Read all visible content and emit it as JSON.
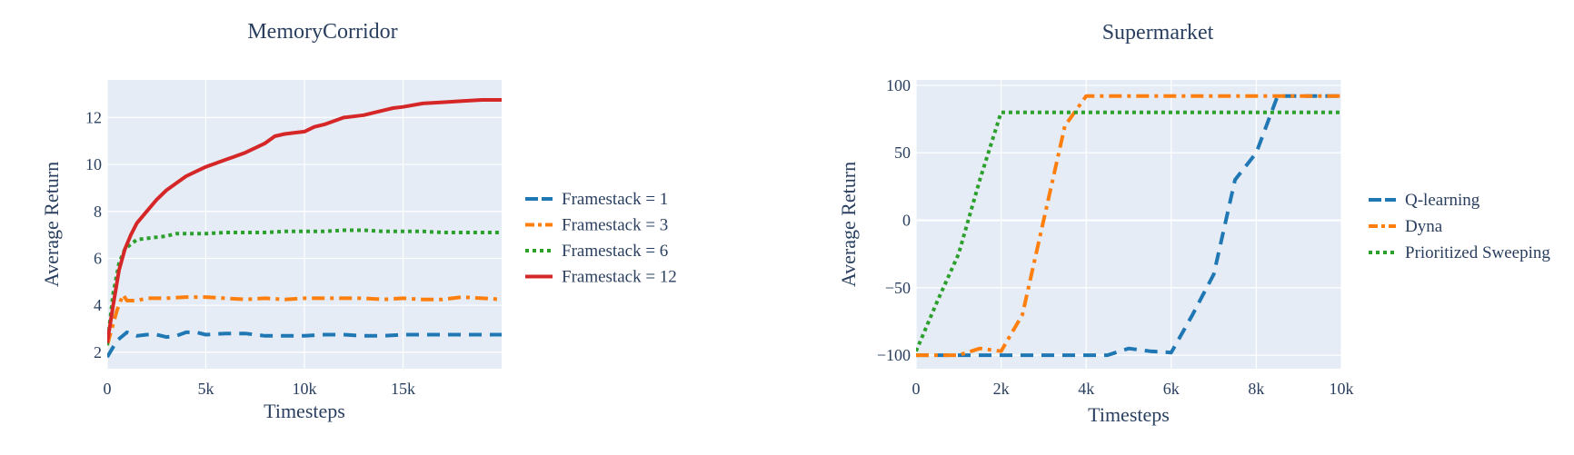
{
  "chart_data": [
    {
      "type": "line",
      "title": "MemoryCorridor",
      "xlabel": "Timesteps",
      "ylabel": "Average Return",
      "xlim": [
        0,
        20000
      ],
      "ylim": [
        1.3,
        13.6
      ],
      "xticks": [
        0,
        5000,
        10000,
        15000
      ],
      "xtick_labels": [
        "0",
        "5k",
        "10k",
        "15k"
      ],
      "yticks": [
        2,
        4,
        6,
        8,
        10,
        12
      ],
      "ytick_labels": [
        "2",
        "4",
        "6",
        "8",
        "10",
        "12"
      ],
      "grid": true,
      "legend_position": "right",
      "series": [
        {
          "name": "Framestack = 1",
          "color": "#1f77b4",
          "dash": "dash",
          "x": [
            0,
            500,
            1000,
            1500,
            2000,
            2500,
            3000,
            3500,
            4000,
            4500,
            5000,
            6000,
            7000,
            8000,
            9000,
            10000,
            11000,
            12000,
            13000,
            14000,
            15000,
            16000,
            17000,
            18000,
            19000,
            20000
          ],
          "y": [
            1.8,
            2.5,
            2.85,
            2.7,
            2.75,
            2.75,
            2.65,
            2.7,
            2.85,
            2.85,
            2.75,
            2.8,
            2.8,
            2.7,
            2.7,
            2.7,
            2.75,
            2.75,
            2.7,
            2.7,
            2.75,
            2.75,
            2.75,
            2.75,
            2.75,
            2.75
          ]
        },
        {
          "name": "Framestack = 3",
          "color": "#ff7f0e",
          "dash": "dashdot",
          "x": [
            0,
            500,
            800,
            1000,
            1500,
            2000,
            3000,
            4000,
            5000,
            6000,
            7000,
            8000,
            9000,
            10000,
            11000,
            12000,
            13000,
            14000,
            15000,
            16000,
            17000,
            18000,
            19000,
            20000
          ],
          "y": [
            2.3,
            3.8,
            4.45,
            4.2,
            4.2,
            4.3,
            4.3,
            4.35,
            4.35,
            4.3,
            4.25,
            4.3,
            4.25,
            4.3,
            4.3,
            4.3,
            4.3,
            4.25,
            4.3,
            4.25,
            4.25,
            4.35,
            4.3,
            4.25
          ]
        },
        {
          "name": "Framestack = 6",
          "color": "#2ca02c",
          "dash": "dot",
          "x": [
            0,
            300,
            600,
            900,
            1200,
            1500,
            2000,
            3000,
            3500,
            4000,
            5000,
            6000,
            7000,
            8000,
            9000,
            10000,
            11000,
            12000,
            13000,
            14000,
            15000,
            16000,
            17000,
            18000,
            19000,
            20000
          ],
          "y": [
            2.3,
            4.5,
            5.8,
            6.4,
            6.6,
            6.8,
            6.85,
            6.95,
            7.05,
            7.05,
            7.05,
            7.1,
            7.1,
            7.1,
            7.15,
            7.15,
            7.15,
            7.2,
            7.2,
            7.15,
            7.15,
            7.15,
            7.1,
            7.1,
            7.1,
            7.1
          ]
        },
        {
          "name": "Framestack = 12",
          "color": "#d62728",
          "dash": "solid",
          "x": [
            0,
            300,
            600,
            900,
            1200,
            1500,
            2000,
            2500,
            3000,
            3500,
            4000,
            4500,
            5000,
            6000,
            7000,
            8000,
            8500,
            9000,
            10000,
            10500,
            11000,
            12000,
            13000,
            14000,
            14500,
            15000,
            16000,
            17000,
            18000,
            19000,
            20000
          ],
          "y": [
            2.4,
            4.0,
            5.5,
            6.4,
            7.0,
            7.5,
            8.0,
            8.5,
            8.9,
            9.2,
            9.5,
            9.7,
            9.9,
            10.2,
            10.5,
            10.9,
            11.2,
            11.3,
            11.4,
            11.6,
            11.7,
            12.0,
            12.1,
            12.3,
            12.4,
            12.45,
            12.6,
            12.65,
            12.7,
            12.75,
            12.75
          ]
        }
      ]
    },
    {
      "type": "line",
      "title": "Supermarket",
      "xlabel": "Timesteps",
      "ylabel": "Average Return",
      "xlim": [
        0,
        10000
      ],
      "ylim": [
        -110,
        104
      ],
      "xticks": [
        0,
        2000,
        4000,
        6000,
        8000,
        10000
      ],
      "xtick_labels": [
        "0",
        "2k",
        "4k",
        "6k",
        "8k",
        "10k"
      ],
      "yticks": [
        -100,
        -50,
        0,
        50,
        100
      ],
      "ytick_labels": [
        "−100",
        "−50",
        "0",
        "50",
        "100"
      ],
      "grid": true,
      "legend_position": "right",
      "series": [
        {
          "name": "Q-learning",
          "color": "#1f77b4",
          "dash": "dash",
          "x": [
            0,
            1000,
            2000,
            3000,
            4000,
            4500,
            5000,
            5500,
            6000,
            6500,
            7000,
            7500,
            8000,
            8500,
            9000,
            9500,
            10000
          ],
          "y": [
            -100,
            -100,
            -100,
            -100,
            -100,
            -100,
            -95,
            -97,
            -98,
            -70,
            -40,
            30,
            50,
            92,
            92,
            92,
            92
          ]
        },
        {
          "name": "Dyna",
          "color": "#ff7f0e",
          "dash": "dashdot",
          "x": [
            0,
            500,
            1000,
            1500,
            2000,
            2500,
            3000,
            3500,
            4000,
            5000,
            6000,
            7000,
            8000,
            9000,
            10000
          ],
          "y": [
            -100,
            -100,
            -100,
            -95,
            -97,
            -70,
            0,
            70,
            92,
            92,
            92,
            92,
            92,
            92,
            92
          ]
        },
        {
          "name": "Prioritized Sweeping",
          "color": "#2ca02c",
          "dash": "dot",
          "x": [
            0,
            500,
            1000,
            1500,
            2000,
            3000,
            4000,
            5000,
            6000,
            7000,
            8000,
            9000,
            10000
          ],
          "y": [
            -97,
            -60,
            -25,
            30,
            80,
            80,
            80,
            80,
            80,
            80,
            80,
            80,
            80
          ]
        }
      ]
    }
  ]
}
